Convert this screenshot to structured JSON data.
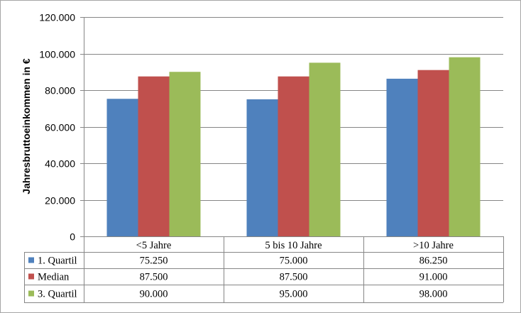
{
  "chart_data": {
    "type": "bar",
    "ylabel": "Jahresbruttoeinkommen in €",
    "ylim": [
      0,
      120000
    ],
    "y_ticks": [
      0,
      20000,
      40000,
      60000,
      80000,
      100000,
      120000
    ],
    "y_tick_labels": [
      "0",
      "20.000",
      "40.000",
      "60.000",
      "80.000",
      "100.000",
      "120.000"
    ],
    "grid": true,
    "legend": "data-table",
    "categories": [
      "<5 Jahre",
      "5 bis 10 Jahre",
      ">10 Jahre"
    ],
    "series": [
      {
        "name": "1. Quartil",
        "color": "#4f81bd",
        "values": [
          75250,
          75000,
          86250
        ],
        "labels": [
          "75.250",
          "75.000",
          "86.250"
        ]
      },
      {
        "name": "Median",
        "color": "#c0504d",
        "values": [
          87500,
          87500,
          91000
        ],
        "labels": [
          "87.500",
          "87.500",
          "91.000"
        ]
      },
      {
        "name": "3. Quartil",
        "color": "#9bbb59",
        "values": [
          90000,
          95000,
          98000
        ],
        "labels": [
          "90.000",
          "95.000",
          "98.000"
        ]
      }
    ]
  }
}
